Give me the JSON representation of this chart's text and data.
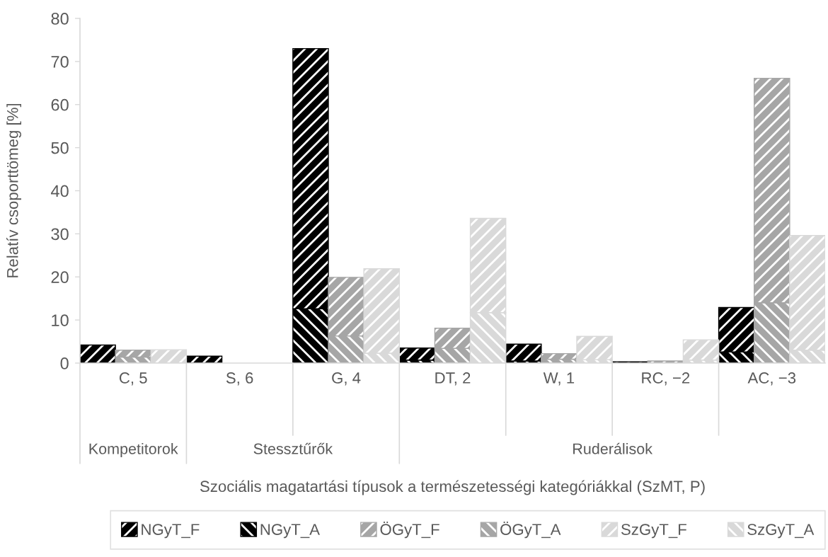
{
  "chart_data": {
    "type": "bar",
    "stacked": true,
    "ylabel": "Relatív csoporttömeg [%]",
    "categories": [
      null,
      "C, 5",
      null,
      null,
      "S, 6",
      null,
      null,
      "G, 4",
      null,
      null,
      "DT, 2",
      null,
      null,
      "W, 1",
      null,
      null,
      "RC, −2",
      null,
      null,
      "AC, −3",
      null
    ],
    "series": [
      {
        "name": "NGyT_A",
        "color": "#000000",
        "values": [
          null,
          null,
          null,
          null,
          null,
          null,
          12.6,
          null,
          null,
          0.7,
          null,
          null,
          0.5,
          null,
          null,
          null,
          null,
          null,
          2.6,
          null,
          null
        ]
      },
      {
        "name": "NGyT_F",
        "color": "#000000",
        "values": [
          4.2,
          null,
          null,
          1.6,
          null,
          null,
          60.4,
          null,
          null,
          2.8,
          null,
          null,
          3.9,
          null,
          null,
          0.3,
          null,
          null,
          10.3,
          null,
          null
        ]
      },
      {
        "name": "ÖGyT_A",
        "color": "#a6a6a6",
        "values": [
          null,
          1.4,
          null,
          null,
          null,
          null,
          null,
          6.3,
          null,
          null,
          3.4,
          null,
          null,
          0.9,
          null,
          null,
          null,
          null,
          null,
          14.0,
          null
        ]
      },
      {
        "name": "ÖGyT_F",
        "color": "#a6a6a6",
        "values": [
          null,
          1.6,
          null,
          null,
          null,
          null,
          null,
          13.6,
          null,
          null,
          4.7,
          null,
          null,
          1.3,
          null,
          null,
          0.5,
          null,
          null,
          52.1,
          null
        ]
      },
      {
        "name": "SzGyT_A",
        "color": "#d9d9d9",
        "values": [
          null,
          null,
          null,
          null,
          null,
          null,
          null,
          null,
          2.3,
          null,
          null,
          11.7,
          null,
          null,
          0.8,
          null,
          null,
          0.7,
          null,
          null,
          3.0
        ]
      },
      {
        "name": "SzGyT_F",
        "color": "#d9d9d9",
        "values": [
          null,
          null,
          3.1,
          null,
          null,
          null,
          null,
          null,
          19.6,
          null,
          null,
          21.9,
          null,
          null,
          5.4,
          null,
          null,
          4.7,
          null,
          null,
          26.6
        ]
      }
    ],
    "ylim": [
      0,
      80
    ],
    "yticks": [
      0,
      10,
      20,
      30,
      40,
      50,
      60,
      70,
      80
    ],
    "legend": "bottom",
    "annotations": [
      "Kompetitorok",
      "Stessztűrők",
      "Ruderálisok",
      "Szociális magatartási típusok a természetességi kategóriákkal (SzMT, P)"
    ]
  }
}
